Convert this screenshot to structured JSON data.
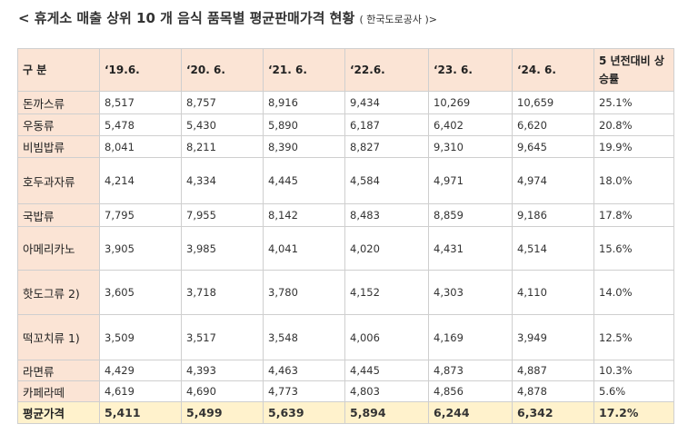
{
  "title": {
    "main": "< 휴게소 매출 상위 10 개 음식 품목별 평균판매가격 현황",
    "source": "( 한국도로공사 )>"
  },
  "table": {
    "headers": [
      "구 분",
      "‘19.6.",
      "‘20. 6.",
      "‘21. 6.",
      "‘22.6.",
      "‘23. 6.",
      "‘24. 6.",
      "5 년전대비 상승률"
    ],
    "rows": [
      {
        "item": "돈까스류",
        "values": [
          "8,517",
          "8,757",
          "8,916",
          "9,434",
          "10,269",
          "10,659",
          "25.1%"
        ]
      },
      {
        "item": "우동류",
        "values": [
          "5,478",
          "5,430",
          "5,890",
          "6,187",
          "6,402",
          "6,620",
          "20.8%"
        ]
      },
      {
        "item": "비빔밥류",
        "values": [
          "8,041",
          "8,211",
          "8,390",
          "8,827",
          "9,310",
          "9,645",
          "19.9%"
        ]
      },
      {
        "item": "호두과자류",
        "values": [
          "4,214",
          "4,334",
          "4,445",
          "4,584",
          "4,971",
          "4,974",
          "18.0%"
        ]
      },
      {
        "item": "국밥류",
        "values": [
          "7,795",
          "7,955",
          "8,142",
          "8,483",
          "8,859",
          "9,186",
          "17.8%"
        ]
      },
      {
        "item": "아메리카노",
        "values": [
          "3,905",
          "3,985",
          "4,041",
          "4,020",
          "4,431",
          "4,514",
          "15.6%"
        ]
      },
      {
        "item": "핫도그류 2)",
        "values": [
          "3,605",
          "3,718",
          "3,780",
          "4,152",
          "4,303",
          "4,110",
          "14.0%"
        ]
      },
      {
        "item": "떡꼬치류 1)",
        "values": [
          "3,509",
          "3,517",
          "3,548",
          "4,006",
          "4,169",
          "3,949",
          "12.5%"
        ]
      },
      {
        "item": "라면류",
        "values": [
          "4,429",
          "4,393",
          "4,463",
          "4,445",
          "4,873",
          "4,887",
          "10.3%"
        ]
      },
      {
        "item": "카페라떼",
        "values": [
          "4,619",
          "4,690",
          "4,773",
          "4,803",
          "4,856",
          "4,878",
          "5.6%"
        ]
      }
    ],
    "average": {
      "item": "평균가격",
      "values": [
        "5,411",
        "5,499",
        "5,639",
        "5,894",
        "6,244",
        "6,342",
        "17.2%"
      ]
    }
  }
}
